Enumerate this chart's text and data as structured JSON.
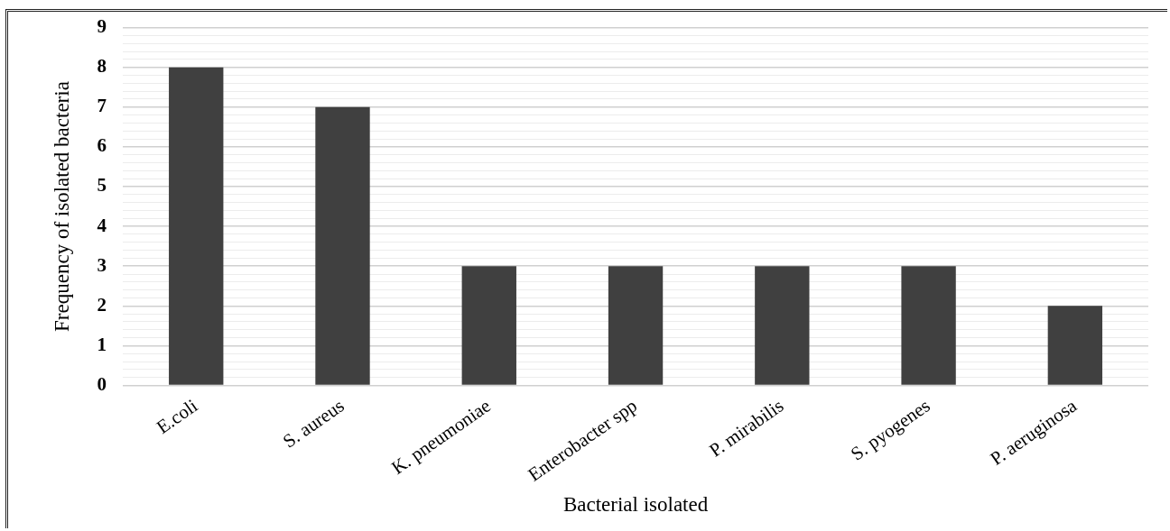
{
  "chart_data": {
    "type": "bar",
    "xlabel": "Bacterial isolated",
    "ylabel": "Frequency of isolated bacteria",
    "categories": [
      "E.coli",
      "S. aureus",
      "K. pneumoniae",
      "Enterobacter spp",
      "P. mirabilis",
      "S. pyogenes",
      "P. aeruginosa"
    ],
    "values": [
      8,
      7,
      3,
      3,
      3,
      3,
      2
    ],
    "color": "#404040",
    "ylim": [
      0,
      9
    ],
    "yticks": [
      0,
      {
        "value": 0.2,
        "label": null
      },
      {
        "value": 0.4,
        "label": null
      },
      {
        "value": 0.6,
        "label": null
      },
      {
        "value": 0.8,
        "label": null
      },
      1,
      {
        "value": 1.2,
        "label": null
      },
      {
        "value": 1.4,
        "label": null
      },
      {
        "value": 1.6,
        "label": null
      },
      {
        "value": 1.8,
        "label": null
      },
      2,
      {
        "value": 2.2,
        "label": null
      },
      {
        "value": 2.4,
        "label": null
      },
      {
        "value": 2.6,
        "label": null
      },
      {
        "value": 2.8,
        "label": null
      },
      3,
      {
        "value": 3.2,
        "label": null
      },
      {
        "value": 3.4,
        "label": null
      },
      {
        "value": 3.6,
        "label": null
      },
      {
        "value": 3.8,
        "label": null
      },
      4,
      {
        "value": 4.2,
        "label": null
      },
      {
        "value": 4.4,
        "label": null
      },
      {
        "value": 4.6,
        "label": null
      },
      {
        "value": 4.8,
        "label": null
      },
      5,
      {
        "value": 5.2,
        "label": null
      },
      {
        "value": 5.4,
        "label": null
      },
      {
        "value": 5.6,
        "label": null
      },
      {
        "value": 5.8,
        "label": null
      },
      6,
      {
        "value": 6.2,
        "label": null
      },
      {
        "value": 6.4,
        "label": null
      },
      {
        "value": 6.6,
        "label": null
      },
      {
        "value": 6.8,
        "label": null
      },
      7,
      {
        "value": 7.2,
        "label": null
      },
      {
        "value": 7.4,
        "label": null
      },
      {
        "value": 7.6,
        "label": null
      },
      {
        "value": 7.8,
        "label": null
      },
      8,
      {
        "value": 8.2,
        "label": null
      },
      {
        "value": 8.4,
        "label": null
      },
      {
        "value": 8.6,
        "label": null
      },
      {
        "value": 8.8,
        "label": null
      },
      9
    ],
    "grid": "y",
    "legend": false
  }
}
